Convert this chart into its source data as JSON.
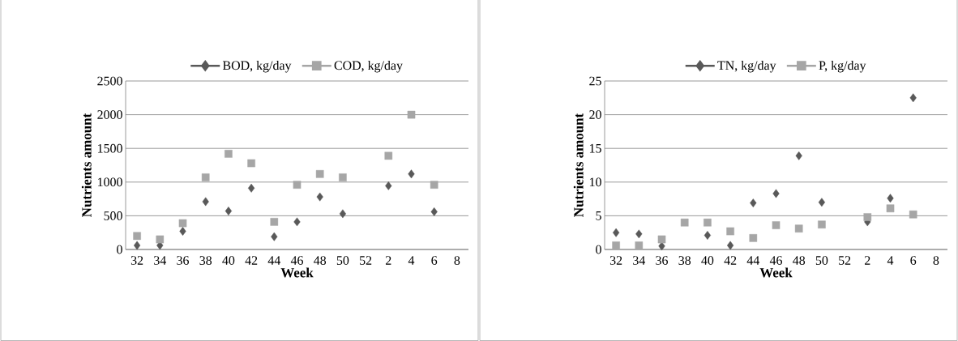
{
  "chart_data": [
    {
      "type": "scatter",
      "xlabel": "Week",
      "ylabel": "Nutrients amount",
      "categories": [
        "32",
        "34",
        "36",
        "38",
        "40",
        "42",
        "44",
        "46",
        "48",
        "50",
        "52",
        "2",
        "4",
        "6",
        "8"
      ],
      "ylim": [
        0,
        2500
      ],
      "yticks": [
        0,
        500,
        1000,
        1500,
        2000,
        2500
      ],
      "grid": "y",
      "legend": "top",
      "series": [
        {
          "name": "BOD, kg/day",
          "color": "#595959",
          "marker": "diamond",
          "values": [
            60,
            60,
            270,
            710,
            570,
            910,
            190,
            410,
            780,
            530,
            null,
            945,
            1120,
            560,
            null
          ]
        },
        {
          "name": "COD, kg/day",
          "color": "#a6a6a6",
          "marker": "square",
          "values": [
            200,
            150,
            390,
            1070,
            1420,
            1280,
            410,
            960,
            1120,
            1070,
            null,
            1390,
            2000,
            960,
            null
          ]
        }
      ]
    },
    {
      "type": "scatter",
      "xlabel": "Week",
      "ylabel": "Nutrients amount",
      "categories": [
        "32",
        "34",
        "36",
        "38",
        "40",
        "42",
        "44",
        "46",
        "48",
        "50",
        "52",
        "2",
        "4",
        "6",
        "8"
      ],
      "ylim": [
        0,
        25
      ],
      "yticks": [
        0,
        5,
        10,
        15,
        20,
        25
      ],
      "grid": "y",
      "legend": "top",
      "series": [
        {
          "name": "TN, kg/day",
          "color": "#595959",
          "marker": "diamond",
          "values": [
            2.5,
            2.3,
            0.5,
            null,
            2.1,
            0.6,
            6.9,
            8.3,
            13.9,
            7.0,
            null,
            4.1,
            7.6,
            22.5,
            null
          ]
        },
        {
          "name": "P, kg/day",
          "color": "#a6a6a6",
          "marker": "square",
          "values": [
            0.6,
            0.6,
            1.5,
            4.0,
            4.0,
            2.7,
            1.7,
            3.6,
            3.1,
            3.7,
            null,
            4.8,
            6.1,
            5.2,
            null
          ]
        }
      ]
    }
  ]
}
